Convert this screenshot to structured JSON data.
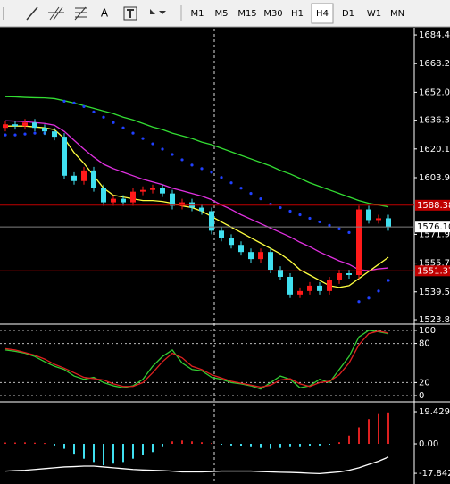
{
  "toolbar": {
    "text_tool": "A",
    "timeframes": [
      "M1",
      "M5",
      "M15",
      "M30",
      "H1",
      "H4",
      "D1",
      "W1",
      "MN"
    ],
    "active_timeframe": "H4"
  },
  "chart_data": [
    {
      "type": "candlestick",
      "open": [
        1632,
        1634,
        1633,
        1635,
        1632,
        1630,
        1627,
        1605,
        1602,
        1608,
        1598,
        1590,
        1592,
        1590,
        1596,
        1597,
        1598,
        1595,
        1588,
        1590,
        1587,
        1585,
        1574,
        1570,
        1566,
        1562,
        1558,
        1562,
        1552,
        1548,
        1538,
        1540,
        1543,
        1540,
        1546,
        1550,
        1549,
        1586,
        1580,
        1581
      ],
      "high": [
        1636,
        1636,
        1637,
        1637,
        1634,
        1632,
        1629,
        1607,
        1610,
        1610,
        1600,
        1594,
        1594,
        1598,
        1599,
        1600,
        1600,
        1597,
        1592,
        1592,
        1589,
        1587,
        1576,
        1572,
        1568,
        1564,
        1564,
        1564,
        1554,
        1550,
        1542,
        1545,
        1545,
        1548,
        1552,
        1552,
        1588,
        1588,
        1583,
        1583
      ],
      "low": [
        1630,
        1631,
        1631,
        1630,
        1628,
        1625,
        1603,
        1600,
        1600,
        1596,
        1588,
        1588,
        1588,
        1588,
        1594,
        1595,
        1593,
        1586,
        1586,
        1585,
        1583,
        1572,
        1568,
        1564,
        1560,
        1556,
        1556,
        1550,
        1546,
        1536,
        1536,
        1538,
        1538,
        1538,
        1544,
        1547,
        1547,
        1578,
        1578,
        1574
      ],
      "close": [
        1634,
        1633,
        1635,
        1632,
        1630,
        1627,
        1605,
        1602,
        1608,
        1598,
        1590,
        1592,
        1590,
        1596,
        1597,
        1598,
        1595,
        1588,
        1590,
        1587,
        1585,
        1574,
        1570,
        1566,
        1562,
        1558,
        1562,
        1552,
        1548,
        1538,
        1540,
        1543,
        1540,
        1546,
        1550,
        1549,
        1586,
        1580,
        1581,
        1576
      ],
      "up_color": "#ff1a1a",
      "down_color": "#40e0f0",
      "lines": [
        {
          "color": "#33dd33",
          "values": [
            1649.6,
            1649.5,
            1649.2,
            1649,
            1648.9,
            1648.5,
            1647.3,
            1646,
            1644.5,
            1643,
            1641.5,
            1640,
            1638,
            1636.5,
            1634.5,
            1632.5,
            1631,
            1629,
            1627.5,
            1626,
            1624,
            1622.5,
            1620.5,
            1618.5,
            1616.5,
            1614.5,
            1612.5,
            1610.5,
            1608,
            1606,
            1603.5,
            1601,
            1599,
            1597,
            1595,
            1593,
            1591,
            1589.5,
            1588.5,
            1587.5
          ]
        },
        {
          "color": "#e030e0",
          "values": [
            1636,
            1635.8,
            1635.5,
            1635,
            1634.5,
            1633.5,
            1630,
            1625,
            1620,
            1615.5,
            1611.5,
            1609,
            1607,
            1605,
            1603,
            1601.5,
            1600,
            1598,
            1596.5,
            1595,
            1593.5,
            1591.5,
            1588.5,
            1586,
            1583,
            1580.5,
            1578,
            1575.5,
            1573,
            1570.5,
            1567.5,
            1565,
            1562,
            1559.5,
            1557,
            1555,
            1552,
            1551.5,
            1552.5,
            1553
          ]
        },
        {
          "color": "#ffff40",
          "values": [
            1633,
            1633,
            1633,
            1632.5,
            1632,
            1631,
            1626,
            1618,
            1612,
            1605,
            1598,
            1594,
            1593,
            1592,
            1591,
            1591,
            1590.5,
            1589.5,
            1588,
            1587,
            1585,
            1582,
            1579,
            1576,
            1573,
            1570,
            1567,
            1564,
            1561,
            1557,
            1552,
            1549,
            1546,
            1543,
            1542,
            1543,
            1547,
            1551,
            1555,
            1559
          ]
        }
      ],
      "dots": {
        "color": "#2040ff",
        "values": [
          1628,
          1628,
          1628.5,
          1629,
          1629,
          1629,
          1647,
          1646,
          1644,
          1641,
          1638,
          1635,
          1632,
          1629,
          1626,
          1623,
          1620,
          1617,
          1614,
          1611,
          1609,
          1607,
          1604,
          1601,
          1598,
          1595,
          1592,
          1589,
          1587,
          1585,
          1583,
          1581,
          1579,
          1577,
          1575,
          1573,
          1534,
          1536,
          1540,
          1546
        ]
      },
      "levels": [
        {
          "value": 1588.38,
          "label": "1588.38",
          "color": "#c00000"
        },
        {
          "value": 1576.1,
          "label": "1576.10",
          "color": "#808080"
        },
        {
          "value": 1551.37,
          "label": "1551.37",
          "color": "#c00000"
        }
      ],
      "ylim": [
        1521.8,
        1688.0
      ],
      "yticks": [
        1684.45,
        1668.25,
        1652.05,
        {
          "value": 1636.3,
          "label": "1636.30"
        },
        {
          "value": 1620.1,
          "label": "1620.10"
        },
        {
          "value": 1603.9,
          "label": "1603.90"
        },
        1571.95,
        1555.75,
        1539.55,
        {
          "value": 1523.8,
          "label": "1523.80"
        }
      ]
    },
    {
      "type": "line",
      "series": [
        {
          "color": "#33cc33",
          "values": [
            70,
            68,
            65,
            60,
            52,
            45,
            40,
            30,
            25,
            28,
            20,
            15,
            12,
            15,
            25,
            45,
            60,
            70,
            50,
            40,
            38,
            28,
            25,
            20,
            18,
            15,
            10,
            20,
            30,
            25,
            12,
            15,
            25,
            20,
            40,
            60,
            90,
            100,
            98,
            95
          ]
        },
        {
          "color": "#dd2020",
          "values": [
            72,
            70,
            66,
            62,
            56,
            48,
            42,
            35,
            28,
            26,
            24,
            18,
            14,
            14,
            20,
            35,
            52,
            65,
            58,
            45,
            40,
            32,
            27,
            22,
            19,
            16,
            13,
            16,
            24,
            26,
            18,
            14,
            20,
            22,
            32,
            50,
            78,
            95,
            99,
            96
          ]
        }
      ],
      "ylim": [
        -8.2,
        106.8
      ],
      "yticks": [
        100,
        80,
        20,
        0
      ],
      "grid": true
    },
    {
      "type": "bar",
      "values": [
        0.8,
        0.8,
        0.9,
        0.7,
        0.5,
        -1,
        -3,
        -6,
        -9,
        -11,
        -13,
        -12,
        -11,
        -9,
        -7,
        -5,
        -2,
        1.5,
        2,
        1.5,
        1,
        0.5,
        -0.5,
        -1,
        -1.5,
        -2,
        -2.5,
        -3,
        -2.5,
        -2,
        -2,
        -1.5,
        -1,
        -0.5,
        1,
        5,
        10,
        15,
        18,
        19
      ],
      "up_color": "#dd2020",
      "down_color": "#40e0f0",
      "lines": [
        {
          "color": "#ffffff",
          "values": [
            -16.5,
            -16.2,
            -16,
            -15.5,
            -15,
            -14.5,
            -14,
            -13.8,
            -13.5,
            -13.5,
            -14,
            -14.5,
            -15,
            -15.5,
            -15.8,
            -16,
            -16.2,
            -16.5,
            -17,
            -17,
            -17,
            -16.8,
            -16.5,
            -16.5,
            -16.5,
            -16.5,
            -16.8,
            -17,
            -17.2,
            -17.3,
            -17.5,
            -17.8,
            -18,
            -17.5,
            -17,
            -16,
            -14.5,
            -12.5,
            -10.5,
            -8
          ]
        }
      ],
      "ylim": [
        -23.2,
        24.3
      ],
      "yticks": [
        19.4297,
        {
          "value": 0,
          "label": "0.00"
        },
        -17.8428
      ]
    }
  ]
}
